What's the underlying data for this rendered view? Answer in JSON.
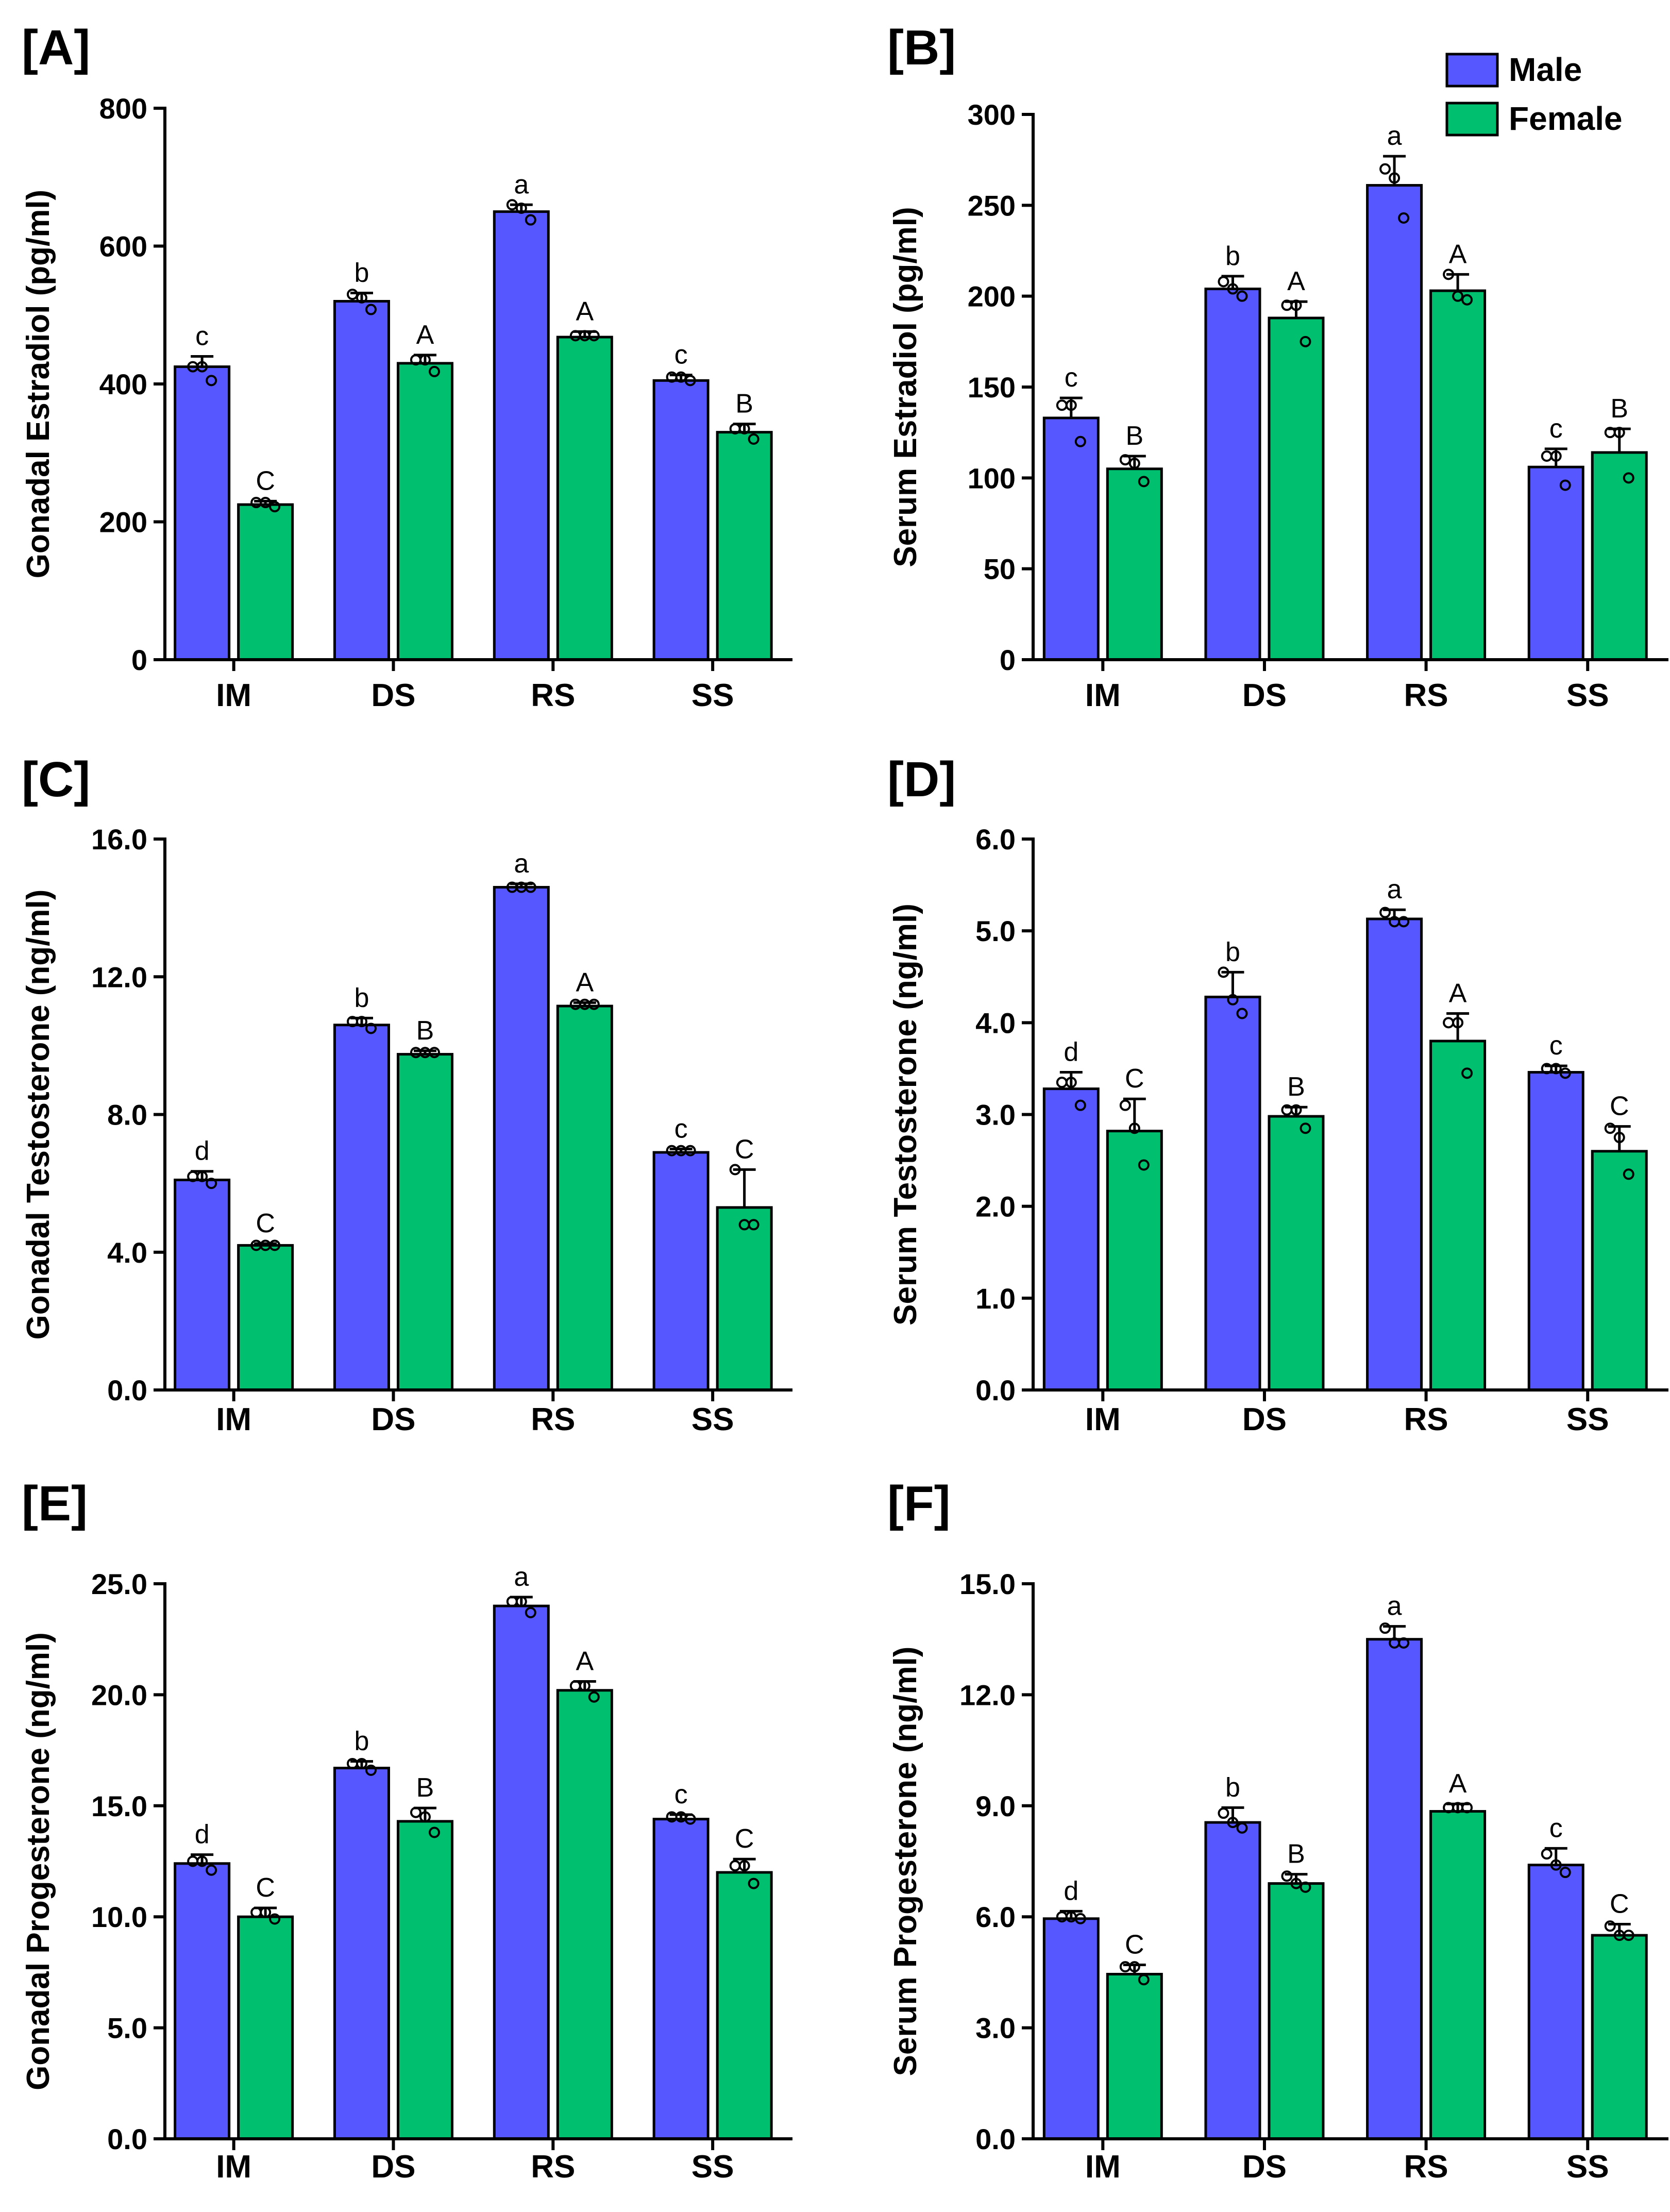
{
  "legend": {
    "items": [
      {
        "name": "Male",
        "color": "#5757ff"
      },
      {
        "name": "Female",
        "color": "#00c070"
      }
    ]
  },
  "chart_data": [
    {
      "panel": "[A]",
      "type": "bar",
      "ylabel": "Gonadal Estradiol (pg/ml)",
      "ylim": [
        0,
        800
      ],
      "yticks": [
        "0",
        "200",
        "400",
        "600",
        "800"
      ],
      "categories": [
        "IM",
        "DS",
        "RS",
        "SS"
      ],
      "series": [
        {
          "name": "Male",
          "values": [
            425,
            520,
            650,
            405
          ],
          "errors": [
            15,
            12,
            10,
            8
          ],
          "letters": [
            "c",
            "b",
            "a",
            "c"
          ],
          "points": [
            [
              425,
              425,
              405
            ],
            [
              530,
              525,
              508
            ],
            [
              660,
              655,
              638
            ],
            [
              410,
              410,
              405
            ]
          ]
        },
        {
          "name": "Female",
          "values": [
            225,
            430,
            468,
            330
          ],
          "errors": [
            5,
            12,
            8,
            12
          ],
          "letters": [
            "C",
            "A",
            "A",
            "B"
          ],
          "points": [
            [
              228,
              228,
              222
            ],
            [
              435,
              435,
              418
            ],
            [
              470,
              470,
              470
            ],
            [
              335,
              335,
              320
            ]
          ]
        }
      ]
    },
    {
      "panel": "[B]",
      "type": "bar",
      "ylabel": "Serum  Estradiol (pg/ml)",
      "ylim": [
        0,
        300
      ],
      "yticks": [
        "0",
        "50",
        "100",
        "150",
        "200",
        "250",
        "300"
      ],
      "categories": [
        "IM",
        "DS",
        "RS",
        "SS"
      ],
      "series": [
        {
          "name": "Male",
          "values": [
            133,
            204,
            261,
            106
          ],
          "errors": [
            11,
            7,
            16,
            10
          ],
          "letters": [
            "c",
            "b",
            "a",
            "c"
          ],
          "points": [
            [
              140,
              140,
              120
            ],
            [
              208,
              204,
              200
            ],
            [
              270,
              265,
              243
            ],
            [
              112,
              112,
              96
            ]
          ]
        },
        {
          "name": "Female",
          "values": [
            105,
            188,
            203,
            114
          ],
          "errors": [
            7,
            9,
            9,
            13
          ],
          "letters": [
            "B",
            "A",
            "A",
            "B"
          ],
          "points": [
            [
              110,
              108,
              98
            ],
            [
              195,
              195,
              175
            ],
            [
              212,
              200,
              198
            ],
            [
              125,
              125,
              100
            ]
          ]
        }
      ]
    },
    {
      "panel": "[C]",
      "type": "bar",
      "ylabel": "Gonadal Testosterone (ng/ml)",
      "ylim": [
        0,
        16
      ],
      "yticks": [
        "0.0",
        "4.0",
        "8.0",
        "12.0",
        "16.0"
      ],
      "categories": [
        "IM",
        "DS",
        "RS",
        "SS"
      ],
      "series": [
        {
          "name": "Male",
          "values": [
            6.1,
            10.6,
            14.6,
            6.9
          ],
          "errors": [
            0.25,
            0.2,
            0.1,
            0.1
          ],
          "letters": [
            "d",
            "b",
            "a",
            "c"
          ],
          "points": [
            [
              6.2,
              6.2,
              6.0
            ],
            [
              10.7,
              10.7,
              10.5
            ],
            [
              14.6,
              14.6,
              14.6
            ],
            [
              6.95,
              6.95,
              6.95
            ]
          ]
        },
        {
          "name": "Female",
          "values": [
            4.2,
            9.75,
            11.15,
            5.3
          ],
          "errors": [
            0.05,
            0.1,
            0.1,
            1.1
          ],
          "letters": [
            "C",
            "B",
            "A",
            "C"
          ],
          "points": [
            [
              4.2,
              4.2,
              4.2
            ],
            [
              9.8,
              9.8,
              9.8
            ],
            [
              11.2,
              11.2,
              11.2
            ],
            [
              6.4,
              4.8,
              4.8
            ]
          ]
        }
      ]
    },
    {
      "panel": "[D]",
      "type": "bar",
      "ylabel": "Serum Testosterone (ng/ml)",
      "ylim": [
        0,
        6
      ],
      "yticks": [
        "0.0",
        "1.0",
        "2.0",
        "3.0",
        "4.0",
        "5.0",
        "6.0"
      ],
      "categories": [
        "IM",
        "DS",
        "RS",
        "SS"
      ],
      "series": [
        {
          "name": "Male",
          "values": [
            3.28,
            4.28,
            5.13,
            3.46
          ],
          "errors": [
            0.18,
            0.27,
            0.1,
            0.07
          ],
          "letters": [
            "d",
            "b",
            "a",
            "c"
          ],
          "points": [
            [
              3.35,
              3.35,
              3.1
            ],
            [
              4.55,
              4.25,
              4.1
            ],
            [
              5.2,
              5.1,
              5.1
            ],
            [
              3.5,
              3.5,
              3.45
            ]
          ]
        },
        {
          "name": "Female",
          "values": [
            2.82,
            2.98,
            3.8,
            2.6
          ],
          "errors": [
            0.35,
            0.1,
            0.3,
            0.27
          ],
          "letters": [
            "C",
            "B",
            "A",
            "C"
          ],
          "points": [
            [
              3.1,
              2.85,
              2.45
            ],
            [
              3.05,
              3.05,
              2.85
            ],
            [
              4.0,
              4.0,
              3.45
            ],
            [
              2.85,
              2.75,
              2.35
            ]
          ]
        }
      ]
    },
    {
      "panel": "[E]",
      "type": "bar",
      "ylabel": "Gonadal Progesterone (ng/ml)",
      "ylim": [
        0,
        25
      ],
      "yticks": [
        "0.0",
        "5.0",
        "10.0",
        "15.0",
        "20.0",
        "25.0"
      ],
      "categories": [
        "IM",
        "DS",
        "RS",
        "SS"
      ],
      "series": [
        {
          "name": "Male",
          "values": [
            12.4,
            16.7,
            24.0,
            14.4
          ],
          "errors": [
            0.4,
            0.3,
            0.4,
            0.2
          ],
          "letters": [
            "d",
            "b",
            "a",
            "c"
          ],
          "points": [
            [
              12.5,
              12.5,
              12.1
            ],
            [
              16.9,
              16.9,
              16.6
            ],
            [
              24.2,
              24.2,
              23.7
            ],
            [
              14.5,
              14.5,
              14.4
            ]
          ]
        },
        {
          "name": "Female",
          "values": [
            10.0,
            14.3,
            20.2,
            12.0
          ],
          "errors": [
            0.4,
            0.6,
            0.4,
            0.6
          ],
          "letters": [
            "C",
            "B",
            "A",
            "C"
          ],
          "points": [
            [
              10.2,
              10.2,
              9.9
            ],
            [
              14.7,
              14.5,
              13.8
            ],
            [
              20.4,
              20.4,
              19.9
            ],
            [
              12.3,
              12.3,
              11.5
            ]
          ]
        }
      ]
    },
    {
      "panel": "[F]",
      "type": "bar",
      "ylabel": "Serum Progesterone (ng/ml)",
      "ylim": [
        0,
        15
      ],
      "yticks": [
        "0.0",
        "3.0",
        "6.0",
        "9.0",
        "12.0",
        "15.0"
      ],
      "categories": [
        "IM",
        "DS",
        "RS",
        "SS"
      ],
      "series": [
        {
          "name": "Male",
          "values": [
            5.95,
            8.55,
            13.5,
            7.4
          ],
          "errors": [
            0.2,
            0.4,
            0.35,
            0.45
          ],
          "letters": [
            "d",
            "b",
            "a",
            "c"
          ],
          "points": [
            [
              6.0,
              6.0,
              5.95
            ],
            [
              8.8,
              8.55,
              8.4
            ],
            [
              13.8,
              13.4,
              13.4
            ],
            [
              7.7,
              7.4,
              7.2
            ]
          ]
        },
        {
          "name": "Female",
          "values": [
            4.45,
            6.9,
            8.85,
            5.5
          ],
          "errors": [
            0.25,
            0.25,
            0.2,
            0.3
          ],
          "letters": [
            "C",
            "B",
            "A",
            "C"
          ],
          "points": [
            [
              4.65,
              4.65,
              4.3
            ],
            [
              7.1,
              6.9,
              6.8
            ],
            [
              8.95,
              8.95,
              8.95
            ],
            [
              5.75,
              5.5,
              5.5
            ]
          ]
        }
      ]
    }
  ]
}
